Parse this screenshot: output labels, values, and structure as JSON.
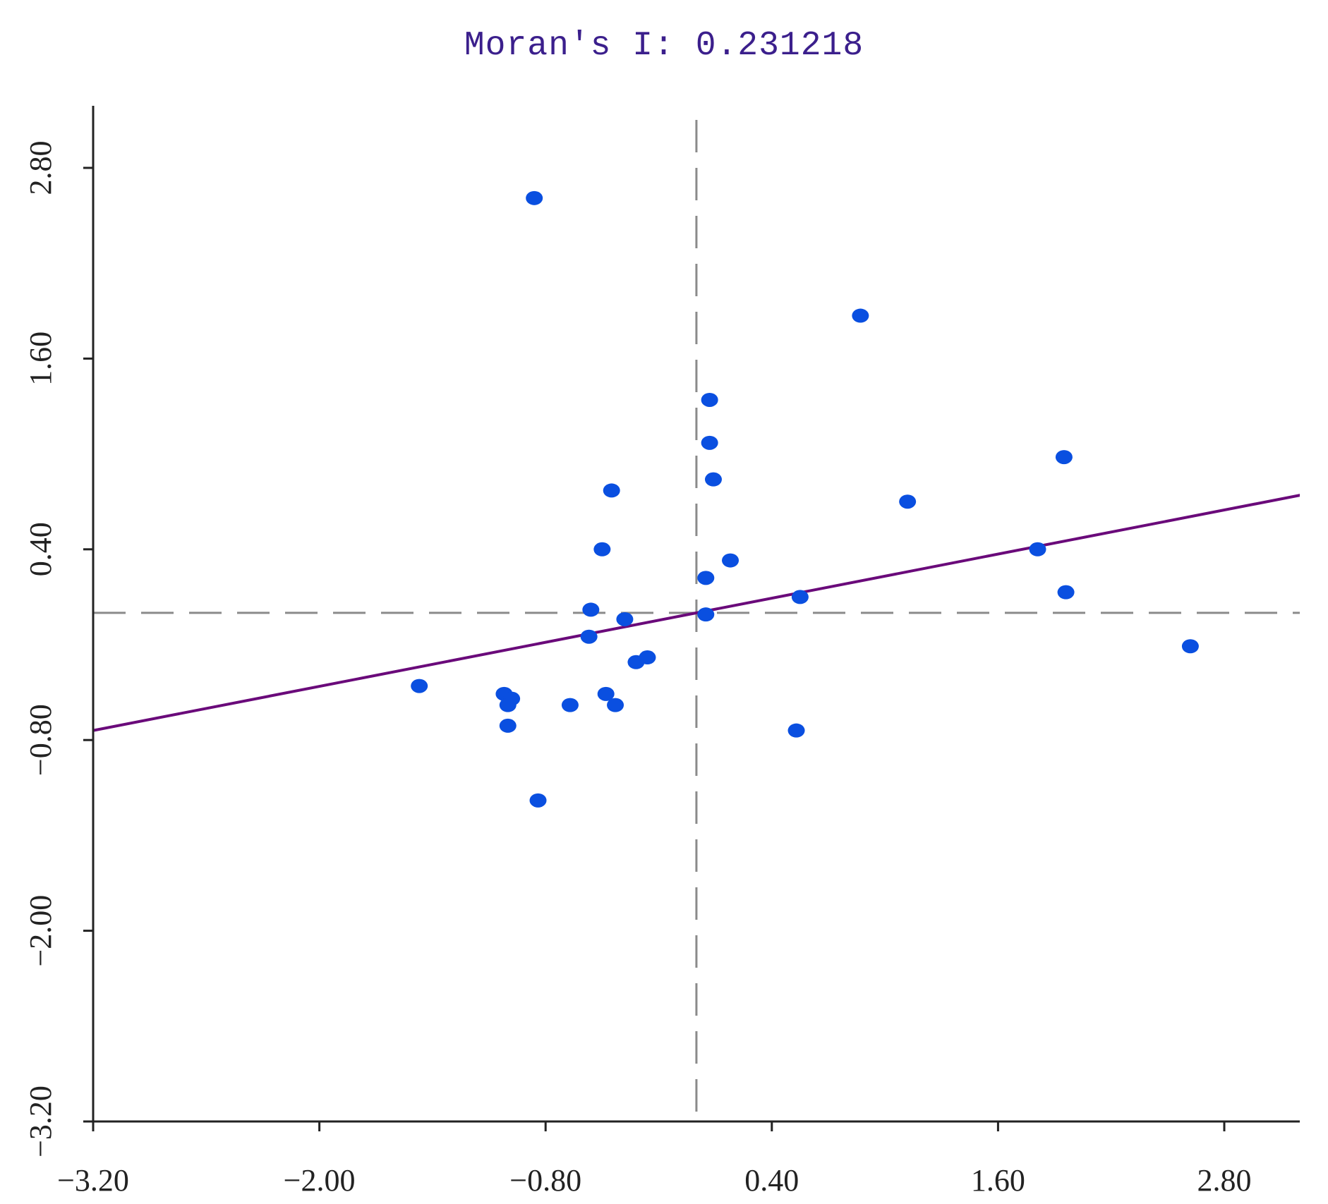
{
  "chart_data": {
    "type": "scatter",
    "title": "Moran's I: 0.231218",
    "xlabel": "",
    "ylabel": "",
    "xlim": [
      -3.2,
      3.2
    ],
    "ylim": [
      -3.2,
      3.2
    ],
    "x_ticks": [
      "−3.20",
      "−2.00",
      "−0.80",
      "0.40",
      "1.60",
      "2.80"
    ],
    "y_ticks": [
      "−3.20",
      "−2.00",
      "−0.80",
      "0.40",
      "1.60",
      "2.80"
    ],
    "x_tick_values": [
      -3.2,
      -2.0,
      -0.8,
      0.4,
      1.6,
      2.8
    ],
    "y_tick_values": [
      -3.2,
      -2.0,
      -0.8,
      0.4,
      1.6,
      2.8
    ],
    "mean_x": 0.0,
    "mean_y": 0.0,
    "regression": {
      "slope": 0.231218,
      "intercept": 0.0
    },
    "points": [
      {
        "x": -0.86,
        "y": 2.61
      },
      {
        "x": 0.87,
        "y": 1.87
      },
      {
        "x": 0.07,
        "y": 1.34
      },
      {
        "x": 0.07,
        "y": 1.07
      },
      {
        "x": 0.09,
        "y": 0.84
      },
      {
        "x": 1.95,
        "y": 0.98
      },
      {
        "x": -0.45,
        "y": 0.77
      },
      {
        "x": 1.12,
        "y": 0.7
      },
      {
        "x": -0.5,
        "y": 0.4
      },
      {
        "x": 0.18,
        "y": 0.33
      },
      {
        "x": 0.05,
        "y": 0.22
      },
      {
        "x": 1.81,
        "y": 0.4
      },
      {
        "x": 1.96,
        "y": 0.13
      },
      {
        "x": 0.55,
        "y": 0.1
      },
      {
        "x": -0.56,
        "y": 0.02
      },
      {
        "x": -0.38,
        "y": -0.04
      },
      {
        "x": 0.05,
        "y": -0.01
      },
      {
        "x": -0.57,
        "y": -0.15
      },
      {
        "x": -0.32,
        "y": -0.31
      },
      {
        "x": -0.26,
        "y": -0.28
      },
      {
        "x": 2.62,
        "y": -0.21
      },
      {
        "x": -1.47,
        "y": -0.46
      },
      {
        "x": -1.02,
        "y": -0.51
      },
      {
        "x": -0.98,
        "y": -0.54
      },
      {
        "x": -1.0,
        "y": -0.58
      },
      {
        "x": -0.67,
        "y": -0.58
      },
      {
        "x": -0.48,
        "y": -0.51
      },
      {
        "x": -0.43,
        "y": -0.58
      },
      {
        "x": -1.0,
        "y": -0.71
      },
      {
        "x": 0.53,
        "y": -0.74
      },
      {
        "x": -0.84,
        "y": -1.18
      }
    ],
    "colors": {
      "points": "#0a4fe0",
      "regression": "#6a0a7a",
      "axes": "#222222",
      "mean_lines": "#8a8a8a",
      "title": "#3b1f8c"
    },
    "grid": false,
    "legend": "none"
  }
}
